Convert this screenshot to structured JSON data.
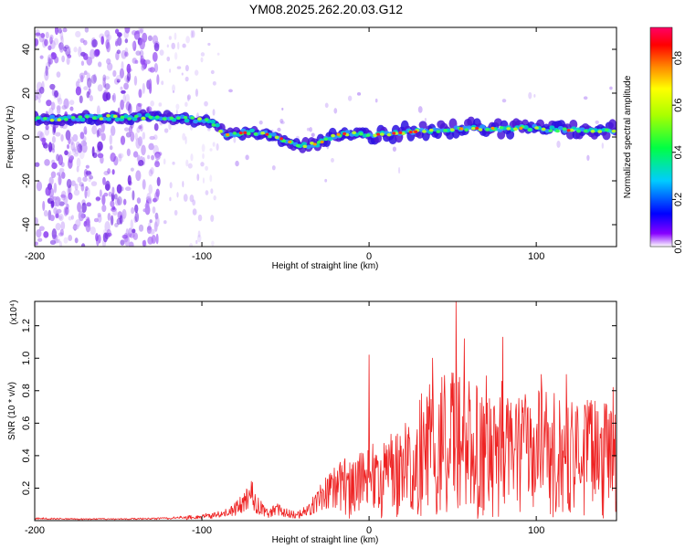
{
  "title": "YM08.2025.262.20.03.G12",
  "chart_data": [
    {
      "type": "heatmap",
      "name": "spectrogram",
      "xlabel": "Height of straight line (km)",
      "ylabel": "Frequency (Hz)",
      "xlim": [
        -200,
        148
      ],
      "ylim": [
        -50,
        50
      ],
      "xticks": [
        -200,
        -100,
        0,
        100
      ],
      "yticks": [
        -40,
        -20,
        0,
        20,
        40
      ],
      "colorbar": {
        "label": "Normalized spectral amplitude",
        "range": [
          0,
          0.93
        ],
        "ticks": [
          0.0,
          0.2,
          0.4,
          0.6,
          0.8
        ],
        "tick_labels": [
          "0.0",
          "0.2",
          "0.4",
          "0.6",
          "0.8"
        ]
      },
      "ridge": {
        "x": [
          -200,
          -180,
          -160,
          -140,
          -120,
          -105,
          -95,
          -85,
          -75,
          -65,
          -55,
          -45,
          -38,
          -30,
          -20,
          -10,
          0,
          20,
          40,
          60,
          80,
          100,
          120,
          148
        ],
        "freq": [
          8,
          8.5,
          9,
          9,
          9,
          8,
          7,
          1,
          2,
          2,
          0,
          -3,
          -4,
          -3,
          1,
          2,
          1,
          2,
          3,
          4,
          4,
          4,
          3,
          3
        ]
      }
    },
    {
      "type": "line",
      "name": "snr",
      "xlabel": "Height of straight line (km)",
      "ylabel": "SNR (10 * v/v)",
      "y_multiplier": "(x10⁴)",
      "xlim": [
        -200,
        148
      ],
      "ylim": [
        0,
        1.35
      ],
      "xticks": [
        -200,
        -100,
        0,
        100
      ],
      "yticks": [
        0.2,
        0.4,
        0.6,
        0.8,
        1.0,
        1.2
      ],
      "envelope": {
        "x": [
          -200,
          -170,
          -140,
          -120,
          -105,
          -90,
          -82,
          -75,
          -70,
          -65,
          -60,
          -55,
          -50,
          -45,
          -40,
          -32,
          -25,
          -20,
          -15,
          -10,
          -5,
          0,
          5,
          10,
          20,
          30,
          40,
          50,
          60,
          70,
          80,
          90,
          100,
          110,
          120,
          130,
          140,
          148
        ],
        "values": [
          0.015,
          0.01,
          0.012,
          0.015,
          0.03,
          0.05,
          0.08,
          0.15,
          0.22,
          0.12,
          0.06,
          0.1,
          0.07,
          0.05,
          0.06,
          0.15,
          0.25,
          0.3,
          0.38,
          0.32,
          0.4,
          0.5,
          0.38,
          0.48,
          0.55,
          0.75,
          0.82,
          0.9,
          0.82,
          0.85,
          0.86,
          0.72,
          0.8,
          0.78,
          0.72,
          0.74,
          0.7,
          0.62
        ]
      },
      "spikes": [
        {
          "x": 0,
          "y": 1.02
        },
        {
          "x": 38,
          "y": 1.0
        },
        {
          "x": 52,
          "y": 1.35
        },
        {
          "x": 57,
          "y": 1.12
        },
        {
          "x": 80,
          "y": 1.13
        },
        {
          "x": 103,
          "y": 0.9
        },
        {
          "x": 118,
          "y": 0.9
        },
        {
          "x": 146,
          "y": 0.82
        }
      ]
    }
  ]
}
